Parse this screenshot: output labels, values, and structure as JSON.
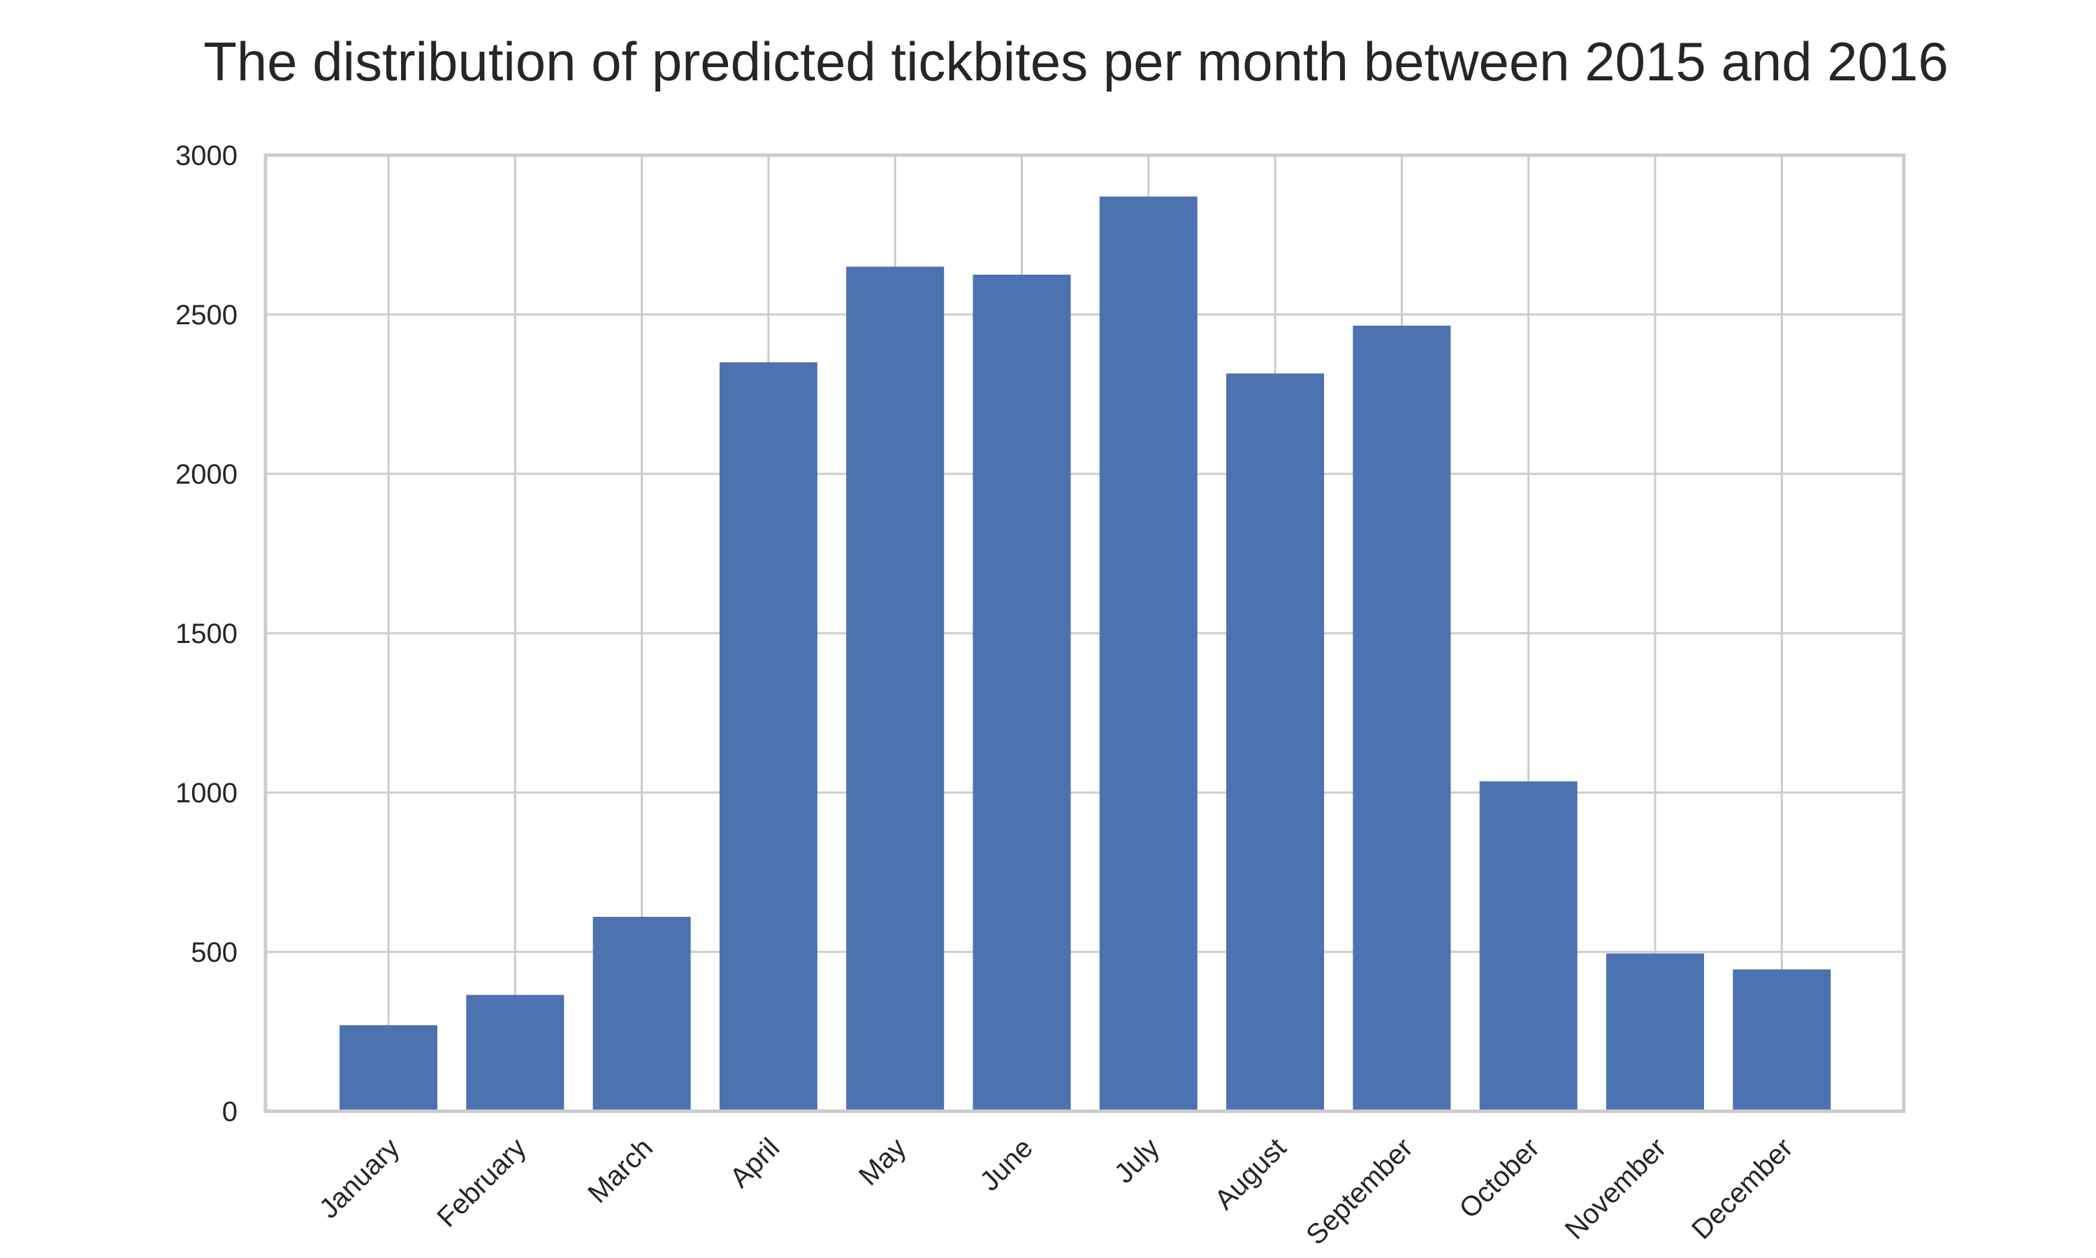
{
  "chart_data": {
    "type": "bar",
    "title": "The distribution of predicted tickbites per month between 2015 and 2016",
    "xlabel": "",
    "ylabel": "",
    "categories": [
      "January",
      "February",
      "March",
      "April",
      "May",
      "June",
      "July",
      "August",
      "September",
      "October",
      "November",
      "December"
    ],
    "values": [
      270,
      365,
      610,
      2350,
      2650,
      2625,
      2870,
      2315,
      2465,
      1035,
      495,
      445
    ],
    "ylim": [
      0,
      3000
    ],
    "yticks": [
      "0",
      "500",
      "1000",
      "1500",
      "2000",
      "2500",
      "3000"
    ],
    "ytick_values": [
      0,
      500,
      1000,
      1500,
      2000,
      2500,
      3000
    ],
    "grid": true,
    "colors": {
      "bar": "#4c72b0",
      "grid": "#cccccc",
      "text": "#262626",
      "background": "#ffffff"
    }
  }
}
